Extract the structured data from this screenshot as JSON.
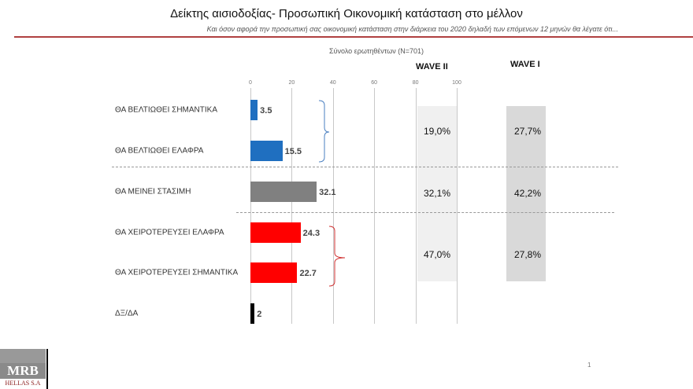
{
  "header": {
    "title": "Δείκτης αισιοδοξίας- Προσωπική Οικονομική κατάσταση στο μέλλον",
    "subtitle": "Και όσον αφορά την προσωπική σας οικονομική κατάσταση στην διάρκεια του 2020 δηλαδή των επόμενων 12 μηνών θα λέγατε ότι..."
  },
  "chart_data": {
    "type": "bar",
    "orientation": "horizontal",
    "title": "Σύνολο ερωτηθέντων (N=701)",
    "categories": [
      "ΘΑ ΒΕΛΤΙΩΘΕΙ ΣΗΜΑΝΤΙΚΑ",
      "ΘΑ ΒΕΛΤΙΩΘΕΙ ΕΛΑΦΡΑ",
      "ΘΑ ΜΕΙΝΕΙ ΣΤΑΣΙΜΗ",
      "ΘΑ ΧΕΙΡΟΤΕΡΕΥΣΕΙ ΕΛΑΦΡΑ",
      "ΘΑ ΧΕΙΡΟΤΕΡΕΥΣΕΙ ΣΗΜΑΝΤΙΚΑ",
      "ΔΞ/ΔΑ"
    ],
    "values": [
      3.5,
      15.5,
      32.1,
      24.3,
      22.7,
      2
    ],
    "value_labels": [
      "3.5",
      "15.5",
      "32.1",
      "24.3",
      "22.7",
      "2"
    ],
    "colors": [
      "#1f6fc0",
      "#1f6fc0",
      "#808080",
      "#ff0000",
      "#ff0000",
      "#000000"
    ],
    "xlim": [
      0,
      100
    ],
    "ticks": [
      "0",
      "20",
      "40",
      "60",
      "80",
      "100"
    ],
    "grid": true,
    "groups": [
      {
        "label": "WAVE II",
        "values": [
          "19,0%",
          "32,1%",
          "47,0%"
        ],
        "color": "#f0f0f0"
      },
      {
        "label": "WAVE I",
        "values": [
          "27,7%",
          "42,2%",
          "27,8%"
        ],
        "color": "#d9d9d9"
      }
    ]
  },
  "logo": {
    "text": "MRB",
    "sub": "HELLAS S.A"
  },
  "page_number": "1"
}
